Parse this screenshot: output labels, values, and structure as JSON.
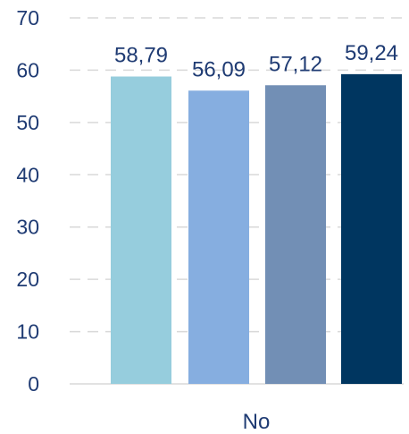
{
  "chart_data": {
    "type": "bar",
    "categories": [
      "No"
    ],
    "series": [
      {
        "values": [
          58.79
        ],
        "color": "#96CDDD"
      },
      {
        "values": [
          56.09
        ],
        "color": "#86AEE0"
      },
      {
        "values": [
          57.12
        ],
        "color": "#728FB5"
      },
      {
        "values": [
          59.24
        ],
        "color": "#003660"
      }
    ],
    "data_labels": [
      "58,79",
      "56,09",
      "57,12",
      "59,24"
    ],
    "ylim": [
      0,
      70
    ],
    "yticks": [
      0,
      10,
      20,
      30,
      40,
      50,
      60,
      70
    ],
    "grid": true,
    "grid_style": "dashed",
    "legend": "none"
  },
  "colors": {
    "text": "#1f3b73",
    "grid": "#d9d9d9",
    "axis": "#d9d9d9"
  }
}
